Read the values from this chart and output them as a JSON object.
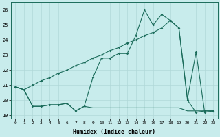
{
  "xlabel": "Humidex (Indice chaleur)",
  "bg_color": "#c8ecec",
  "line_color": "#1a6b5a",
  "grid_color": "#b0d8d8",
  "xlim": [
    -0.5,
    23.5
  ],
  "ylim": [
    18.8,
    26.5
  ],
  "yticks": [
    19,
    20,
    21,
    22,
    23,
    24,
    25,
    26
  ],
  "xticks": [
    0,
    1,
    2,
    3,
    4,
    5,
    6,
    7,
    8,
    9,
    10,
    11,
    12,
    13,
    14,
    15,
    16,
    17,
    18,
    19,
    20,
    21,
    22,
    23
  ],
  "lineA_x": [
    0,
    1,
    2,
    3,
    4,
    5,
    6,
    7,
    8,
    9,
    10,
    11,
    12,
    13,
    14,
    15,
    16,
    17,
    18,
    19,
    20,
    21,
    22,
    23
  ],
  "lineA_y": [
    20.9,
    20.7,
    19.6,
    19.6,
    19.7,
    19.7,
    19.8,
    19.3,
    19.6,
    21.5,
    22.8,
    22.8,
    23.1,
    23.1,
    24.3,
    26.0,
    25.0,
    25.7,
    25.3,
    24.8,
    20.1,
    23.2,
    19.2,
    19.3
  ],
  "lineB_x": [
    0,
    1,
    2,
    3,
    4,
    5,
    6,
    7,
    8,
    9,
    10,
    11,
    12,
    13,
    14,
    15,
    16,
    17,
    18,
    19,
    20,
    21,
    22,
    23
  ],
  "lineB_y": [
    20.9,
    20.7,
    21.0,
    21.3,
    21.5,
    21.8,
    22.0,
    22.3,
    22.5,
    22.8,
    23.0,
    23.3,
    23.5,
    23.8,
    24.0,
    24.3,
    24.5,
    24.8,
    25.3,
    24.8,
    20.0,
    19.2,
    19.3,
    19.3
  ],
  "lineC_x": [
    0,
    1,
    2,
    3,
    4,
    5,
    6,
    7,
    8,
    9,
    10,
    11,
    12,
    13,
    14,
    15,
    16,
    17,
    18,
    19,
    20,
    21,
    22,
    23
  ],
  "lineC_y": [
    20.9,
    20.7,
    19.6,
    19.6,
    19.7,
    19.7,
    19.8,
    19.3,
    19.6,
    19.5,
    19.5,
    19.5,
    19.5,
    19.5,
    19.5,
    19.5,
    19.5,
    19.5,
    19.5,
    19.5,
    19.3,
    19.3,
    19.3,
    19.3
  ]
}
